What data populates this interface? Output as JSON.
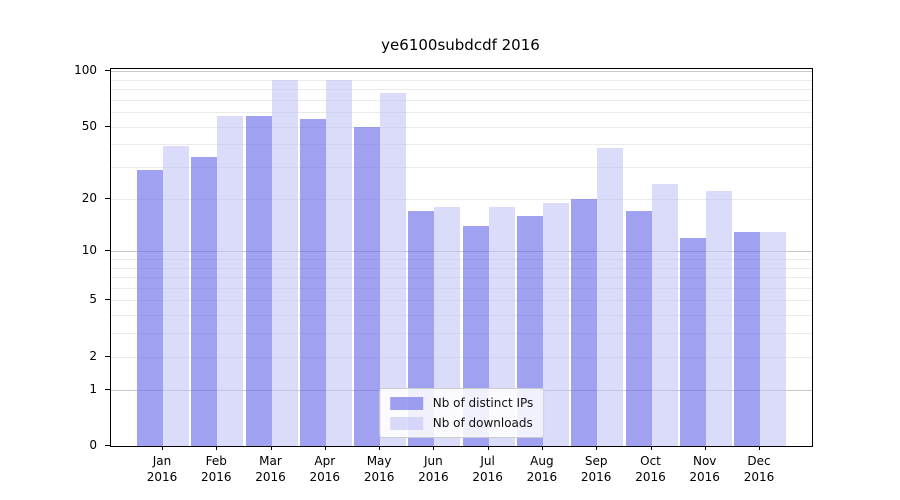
{
  "chart_data": {
    "type": "bar",
    "title": "ye6100subdcdf 2016",
    "categories": [
      "Jan",
      "Feb",
      "Mar",
      "Apr",
      "May",
      "Jun",
      "Jul",
      "Aug",
      "Sep",
      "Oct",
      "Nov",
      "Dec"
    ],
    "year": "2016",
    "series": [
      {
        "name": "Nb of distinct IPs",
        "values": [
          29,
          34,
          57,
          55,
          50,
          17,
          14,
          16,
          20,
          17,
          12,
          13
        ]
      },
      {
        "name": "Nb of downloads",
        "values": [
          39,
          57,
          90,
          89,
          76,
          18,
          18,
          19,
          38,
          24,
          22,
          13
        ]
      }
    ],
    "yscale": "log1p",
    "ylim": [
      0,
      102.5
    ],
    "ytick_values": [
      0,
      1,
      2,
      5,
      10,
      20,
      50,
      100
    ],
    "ytick_labels": [
      "0",
      "1",
      "2",
      "5",
      "10",
      "20",
      "50",
      "100"
    ],
    "major_gridlines": [
      1,
      10,
      100
    ],
    "minor_gridlines": [
      2,
      3,
      4,
      5,
      6,
      7,
      8,
      9,
      20,
      30,
      40,
      50,
      60,
      70,
      80,
      90
    ],
    "grid": true,
    "legend_position": "lower center",
    "xlabel": "",
    "ylabel": "",
    "colors": {
      "distinct_ips_bar": "#a1a1f1",
      "downloads_bar": "#dbdbf9",
      "major_grid": "#c9c9c9",
      "minor_grid": "#ebebeb",
      "axis": "#000000"
    }
  },
  "legend": {
    "items": [
      {
        "label": "Nb of distinct IPs"
      },
      {
        "label": "Nb of downloads"
      }
    ]
  }
}
